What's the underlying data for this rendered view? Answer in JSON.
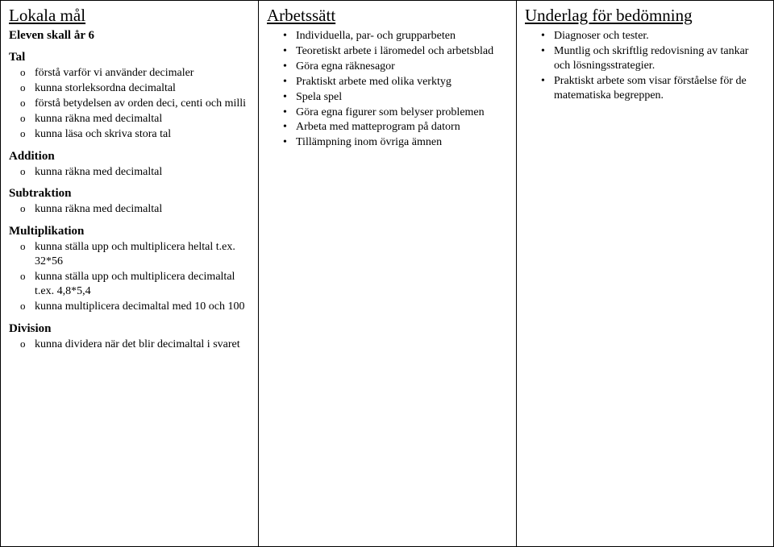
{
  "col1": {
    "header": "Lokala mål",
    "intro": "Eleven skall år 6",
    "sections": [
      {
        "title": "Tal",
        "items": [
          "förstå varför vi använder decimaler",
          "kunna storleksordna decimaltal",
          "förstå betydelsen av orden deci, centi och milli",
          "kunna räkna med decimaltal",
          "kunna läsa och skriva stora tal"
        ]
      },
      {
        "title": "Addition",
        "items": [
          "kunna räkna med decimaltal"
        ]
      },
      {
        "title": "Subtraktion",
        "items": [
          "kunna räkna med decimaltal"
        ]
      },
      {
        "title": "Multiplikation",
        "items": [
          "kunna ställa upp och multiplicera heltal t.ex. 32*56",
          "kunna ställa upp och multiplicera decimaltal t.ex. 4,8*5,4",
          "kunna multiplicera decimaltal med 10 och 100"
        ]
      },
      {
        "title": "Division",
        "items": [
          "kunna dividera när det blir decimaltal i svaret"
        ]
      }
    ]
  },
  "col2": {
    "header": "Arbetssätt",
    "items": [
      "Individuella, par- och grupparbeten",
      "Teoretiskt arbete i läromedel och arbetsblad",
      "Göra egna räknesagor",
      "Praktiskt arbete med olika verktyg",
      "Spela spel",
      "Göra egna figurer som belyser problemen",
      "Arbeta med matteprogram på datorn",
      "Tillämpning inom övriga ämnen"
    ]
  },
  "col3": {
    "header": "Underlag för bedömning",
    "items": [
      "Diagnoser och tester.",
      "Muntlig och skriftlig redovisning av tankar och lösningsstrategier.",
      "Praktiskt arbete som visar förståelse för de matematiska begreppen."
    ]
  }
}
